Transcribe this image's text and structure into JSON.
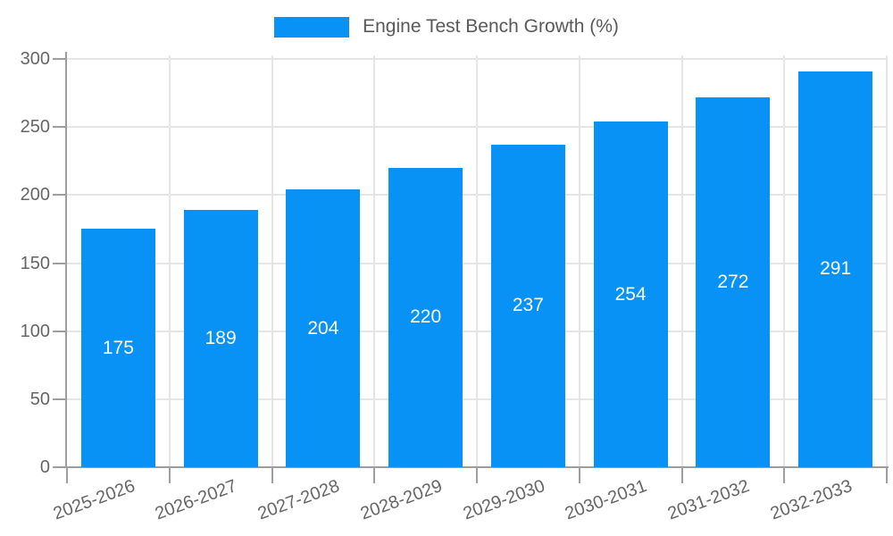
{
  "chart_data": {
    "type": "bar",
    "legend_label": "Engine Test Bench Growth (%)",
    "series": [
      {
        "name": "Engine Test Bench Growth (%)",
        "values": [
          175,
          189,
          204,
          220,
          237,
          254,
          272,
          291
        ]
      }
    ],
    "categories": [
      "2025-2026",
      "2026-2027",
      "2027-2028",
      "2028-2029",
      "2029-2030",
      "2030-2031",
      "2031-2032",
      "2032-2033"
    ],
    "ylim": [
      0,
      300
    ],
    "yticks": [
      0,
      50,
      100,
      150,
      200,
      250,
      300
    ],
    "grid": true,
    "legend_position": "top-center",
    "x_label_rotation_deg": -20,
    "value_label_position": "inside-middle",
    "colors": {
      "bar": "#0892f5",
      "gridline": "#e5e5e5",
      "axis": "#9e9e9e",
      "tick_label": "#666666",
      "legend_text": "#595959",
      "value_label": "#ffffff",
      "background": "#ffffff"
    }
  }
}
